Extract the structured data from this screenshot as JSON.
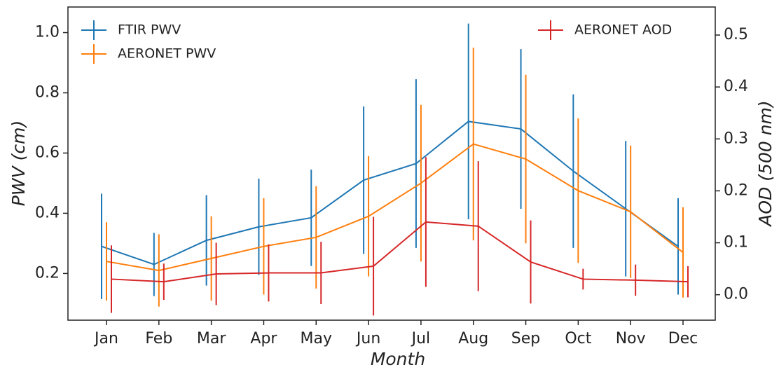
{
  "chart_data": {
    "type": "line",
    "xlabel": "Month",
    "ylabel": "PWV (cm)",
    "y2label": "AOD (500 nm)",
    "categories": [
      "Jan",
      "Feb",
      "Mar",
      "Apr",
      "May",
      "Jun",
      "Jul",
      "Aug",
      "Sep",
      "Oct",
      "Nov",
      "Dec"
    ],
    "ylim": [
      0.045,
      1.085
    ],
    "yticks": [
      0.2,
      0.4,
      0.6,
      0.8,
      {
        "value": 1.0,
        "label": "1.0"
      }
    ],
    "y2lim": [
      -0.049,
      0.554
    ],
    "y2ticks": [
      {
        "value": 0,
        "label": "0.0"
      },
      0.1,
      0.2,
      0.3,
      0.4,
      0.5
    ],
    "series": [
      {
        "name": "FTIR PWV",
        "color": "#1f77b4",
        "values": [
          0.29,
          0.23,
          0.31,
          0.355,
          0.385,
          0.51,
          0.565,
          0.705,
          0.68,
          0.54,
          0.415,
          0.29
        ],
        "errors": [
          0.175,
          0.105,
          0.15,
          0.16,
          0.16,
          0.245,
          0.28,
          0.325,
          0.265,
          0.255,
          0.225,
          0.16
        ]
      },
      {
        "name": "AERONET PWV",
        "color": "#ff7f0e",
        "values": [
          0.24,
          0.21,
          0.25,
          0.29,
          0.32,
          0.39,
          0.5,
          0.63,
          0.58,
          0.475,
          0.405,
          0.27
        ],
        "errors": [
          0.13,
          0.12,
          0.14,
          0.16,
          0.17,
          0.2,
          0.26,
          0.32,
          0.28,
          0.24,
          0.22,
          0.15
        ]
      },
      {
        "name": "AERONET AOD",
        "color": "#d62728",
        "axis": "y2",
        "values": [
          0.03,
          0.025,
          0.04,
          0.042,
          0.042,
          0.055,
          0.14,
          0.132,
          0.063,
          0.03,
          0.028,
          0.025
        ],
        "errors": [
          0.065,
          0.035,
          0.06,
          0.055,
          0.06,
          0.095,
          0.125,
          0.125,
          0.08,
          0.02,
          0.03,
          0.03
        ]
      }
    ]
  }
}
